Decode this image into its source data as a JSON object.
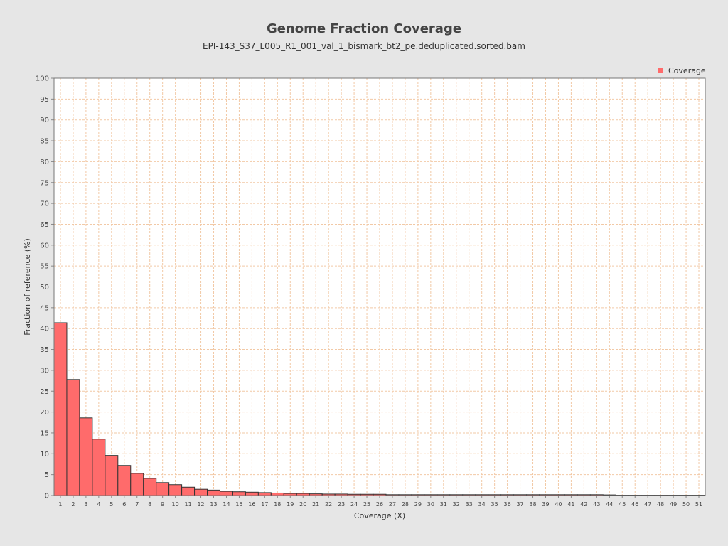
{
  "chart_data": {
    "type": "bar",
    "title": "Genome Fraction Coverage",
    "subtitle": "EPI-143_S37_L005_R1_001_val_1_bismark_bt2_pe.deduplicated.sorted.bam",
    "xlabel": "Coverage (X)",
    "ylabel": "Fraction of reference (%)",
    "ylim": [
      0,
      100
    ],
    "yticks": [
      0,
      5,
      10,
      15,
      20,
      25,
      30,
      35,
      40,
      45,
      50,
      55,
      60,
      65,
      70,
      75,
      80,
      85,
      90,
      95,
      100
    ],
    "grid": true,
    "legend_position": "top-right",
    "categories": [
      "1",
      "2",
      "3",
      "4",
      "5",
      "6",
      "7",
      "8",
      "9",
      "10",
      "11",
      "12",
      "13",
      "14",
      "15",
      "16",
      "17",
      "18",
      "19",
      "20",
      "21",
      "22",
      "23",
      "24",
      "25",
      "26",
      "27",
      "28",
      "29",
      "30",
      "31",
      "32",
      "33",
      "34",
      "35",
      "36",
      "37",
      "38",
      "39",
      "40",
      "41",
      "42",
      "43",
      "44",
      "45",
      "46",
      "47",
      "48",
      "49",
      "50",
      "51"
    ],
    "series": [
      {
        "name": "Coverage",
        "color": "#ff6b6b",
        "values": [
          41.4,
          27.8,
          18.6,
          13.5,
          9.6,
          7.2,
          5.3,
          4.1,
          3.1,
          2.6,
          2.0,
          1.5,
          1.3,
          1.0,
          0.9,
          0.8,
          0.7,
          0.6,
          0.5,
          0.5,
          0.4,
          0.35,
          0.35,
          0.3,
          0.3,
          0.3,
          0.2,
          0.2,
          0.2,
          0.2,
          0.2,
          0.2,
          0.2,
          0.2,
          0.2,
          0.2,
          0.2,
          0.2,
          0.2,
          0.2,
          0.2,
          0.2,
          0.2,
          0.15,
          0.08,
          0.08,
          0.08,
          0.08,
          0.08,
          0.08,
          0.08
        ]
      }
    ]
  }
}
